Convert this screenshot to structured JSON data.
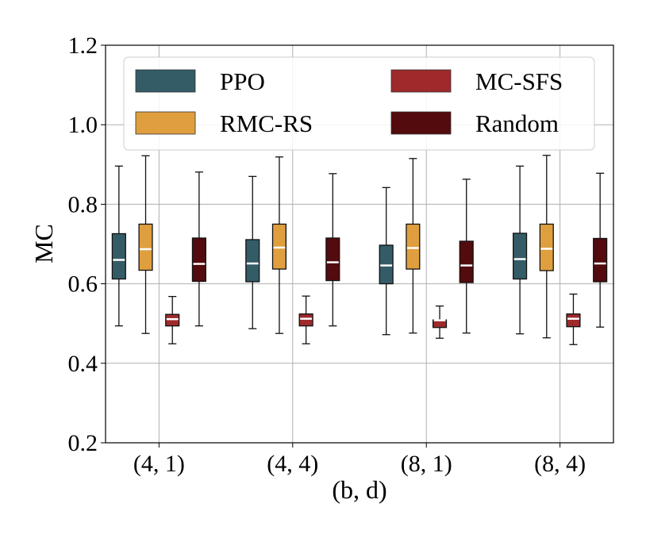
{
  "chart_data": {
    "type": "box",
    "title": "",
    "xlabel": "(b, d)",
    "ylabel": "MC",
    "ylim": [
      0.2,
      1.2
    ],
    "yticks": [
      "0.2",
      "0.4",
      "0.6",
      "0.8",
      "1.0",
      "1.2"
    ],
    "yticks_values": [
      0.2,
      0.4,
      0.6,
      0.8,
      1.0,
      1.2
    ],
    "categories": [
      "(4, 1)",
      "(4, 4)",
      "(8, 1)",
      "(8, 4)"
    ],
    "grid": true,
    "legend_position": "top",
    "series": [
      {
        "name": "PPO",
        "color": "#335c67",
        "boxes": [
          {
            "whislo": 0.494,
            "q1": 0.612,
            "med": 0.66,
            "q3": 0.726,
            "whishi": 0.896
          },
          {
            "whislo": 0.487,
            "q1": 0.605,
            "med": 0.651,
            "q3": 0.711,
            "whishi": 0.87
          },
          {
            "whislo": 0.472,
            "q1": 0.6,
            "med": 0.646,
            "q3": 0.697,
            "whishi": 0.842
          },
          {
            "whislo": 0.474,
            "q1": 0.612,
            "med": 0.662,
            "q3": 0.727,
            "whishi": 0.896
          }
        ]
      },
      {
        "name": "RMC-RS",
        "color": "#e09f3e",
        "boxes": [
          {
            "whislo": 0.475,
            "q1": 0.634,
            "med": 0.687,
            "q3": 0.75,
            "whishi": 0.922
          },
          {
            "whislo": 0.475,
            "q1": 0.637,
            "med": 0.691,
            "q3": 0.75,
            "whishi": 0.919
          },
          {
            "whislo": 0.476,
            "q1": 0.637,
            "med": 0.69,
            "q3": 0.75,
            "whishi": 0.915
          },
          {
            "whislo": 0.464,
            "q1": 0.633,
            "med": 0.688,
            "q3": 0.75,
            "whishi": 0.923
          }
        ]
      },
      {
        "name": "MC-SFS",
        "color": "#9e2a2b",
        "boxes": [
          {
            "whislo": 0.449,
            "q1": 0.494,
            "med": 0.511,
            "q3": 0.523,
            "whishi": 0.568
          },
          {
            "whislo": 0.449,
            "q1": 0.494,
            "med": 0.512,
            "q3": 0.524,
            "whishi": 0.569
          },
          {
            "whislo": 0.463,
            "q1": 0.49,
            "med": 0.508,
            "q3": 0.509,
            "whishi": 0.544
          },
          {
            "whislo": 0.447,
            "q1": 0.492,
            "med": 0.512,
            "q3": 0.524,
            "whishi": 0.574
          }
        ]
      },
      {
        "name": "Random",
        "color": "#540b0e",
        "boxes": [
          {
            "whislo": 0.494,
            "q1": 0.606,
            "med": 0.65,
            "q3": 0.715,
            "whishi": 0.881
          },
          {
            "whislo": 0.494,
            "q1": 0.608,
            "med": 0.654,
            "q3": 0.715,
            "whishi": 0.877
          },
          {
            "whislo": 0.476,
            "q1": 0.603,
            "med": 0.646,
            "q3": 0.707,
            "whishi": 0.863
          },
          {
            "whislo": 0.491,
            "q1": 0.605,
            "med": 0.651,
            "q3": 0.714,
            "whishi": 0.878
          }
        ]
      }
    ]
  }
}
